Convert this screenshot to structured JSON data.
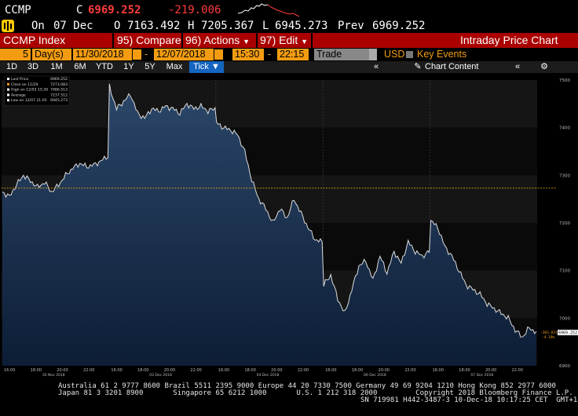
{
  "header": {
    "ticker": "CCMP",
    "close_prefix": "C",
    "close_value": "6969.252",
    "change": "-219.006",
    "colors": {
      "close": "#ff3d3d",
      "change": "#ff3d3d"
    }
  },
  "status": {
    "on_label": "On",
    "date": "07 Dec",
    "open_label": "O",
    "open": "7163.492",
    "high_label": "H",
    "high": "7205.367",
    "low_label": "L",
    "low": "6945.273",
    "prev_label": "Prev",
    "prev": "6969.252"
  },
  "menubar": {
    "security": "CCMP Index",
    "compare_num": "95)",
    "compare": "Compare",
    "actions_num": "96)",
    "actions": "Actions",
    "edit_num": "97)",
    "edit": "Edit",
    "title": "Intraday Price Chart"
  },
  "datebar": {
    "days_count": "5",
    "days_unit": "Day(s)",
    "start_date": "11/30/2018",
    "end_date": "12/07/2018",
    "start_time": "15:30",
    "dash": "-",
    "end_time": "22:15",
    "trade_type": "Trade",
    "currency": "USD",
    "key_events": "Key Events"
  },
  "toolbar": {
    "periods": [
      "1D",
      "3D",
      "1M",
      "6M",
      "YTD",
      "1Y",
      "5Y",
      "Max"
    ],
    "tick": "Tick ▼",
    "chart_content": "Chart Content"
  },
  "legend": {
    "items": [
      {
        "label": "Last Price",
        "value": "6969.252",
        "color": "#ffffff"
      },
      {
        "label": "Close on 11/29",
        "value": "7273.083",
        "color": "#f39c12"
      },
      {
        "label": "High on 12/03 15:30",
        "value": "7486.513",
        "color": "#ffffff"
      },
      {
        "label": "Average",
        "value": "7237.512",
        "color": "#ffffff"
      },
      {
        "label": "Low on 12/07 21:05",
        "value": "6945.273",
        "color": "#ffffff"
      }
    ]
  },
  "chart_data": {
    "type": "area",
    "title": "",
    "ylim": [
      6900,
      7500
    ],
    "y_ticks": [
      7500,
      7400,
      7300,
      7200,
      7100,
      7000,
      6900
    ],
    "reference_line": 7273.083,
    "last_price_label": "6969.252",
    "change_label": "-303.831",
    "change_pct_label": "-4.18%",
    "x_time_labels": [
      "16:00",
      "18:00",
      "20:00",
      "22:00",
      "16:00",
      "18:00",
      "20:00",
      "22:00",
      "16:00",
      "18:00",
      "20:00",
      "22:00",
      "16:00",
      "18:00",
      "20:00",
      "22:00",
      "16:00",
      "18:00",
      "20:00",
      "22:00"
    ],
    "day_labels": [
      "30 Nov 2018",
      "03 Dec 2018",
      "04 Dec 2018",
      "06 Dec 2018",
      "07 Dec 2018"
    ],
    "days": [
      {
        "label": "30 Nov 2018",
        "values": [
          7265,
          7255,
          7280,
          7300,
          7288,
          7275,
          7285,
          7265,
          7280,
          7300,
          7315,
          7325,
          7318,
          7322,
          7330,
          7340
        ]
      },
      {
        "label": "03 Dec 2018",
        "values": [
          7486,
          7440,
          7455,
          7470,
          7430,
          7420,
          7440,
          7435,
          7445,
          7440,
          7430,
          7450,
          7440,
          7445,
          7435,
          7440
        ]
      },
      {
        "label": "04 Dec 2018",
        "values": [
          7410,
          7400,
          7395,
          7385,
          7350,
          7290,
          7250,
          7230,
          7200,
          7230,
          7210,
          7250,
          7220,
          7190,
          7165,
          7160
        ]
      },
      {
        "label": "06 Dec 2018",
        "values": [
          7070,
          7090,
          7040,
          7010,
          7060,
          7110,
          7120,
          7080,
          7130,
          7095,
          7140,
          7115,
          7160,
          7140,
          7130,
          7140
        ]
      },
      {
        "label": "07 Dec 2018",
        "values": [
          7205,
          7190,
          7150,
          7130,
          7100,
          7070,
          7060,
          7050,
          7030,
          7020,
          7010,
          7000,
          6975,
          6960,
          6980,
          6969
        ]
      }
    ]
  },
  "footer": {
    "line1": "Australia 61 2 9777 8600 Brazil 5511 2395 9000 Europe 44 20 7330 7500 Germany 49 69 9204 1210 Hong Kong 852 2977 6000",
    "line2": "Japan 81 3 3201 8900       Singapore 65 6212 1000       U.S. 1 212 318 2000         Copyright 2018 Bloomberg Finance L.P.",
    "line3": "SN 719981 H442-3487-3 10-Dec-18 10:17:25 CET  GMT+1:00"
  }
}
